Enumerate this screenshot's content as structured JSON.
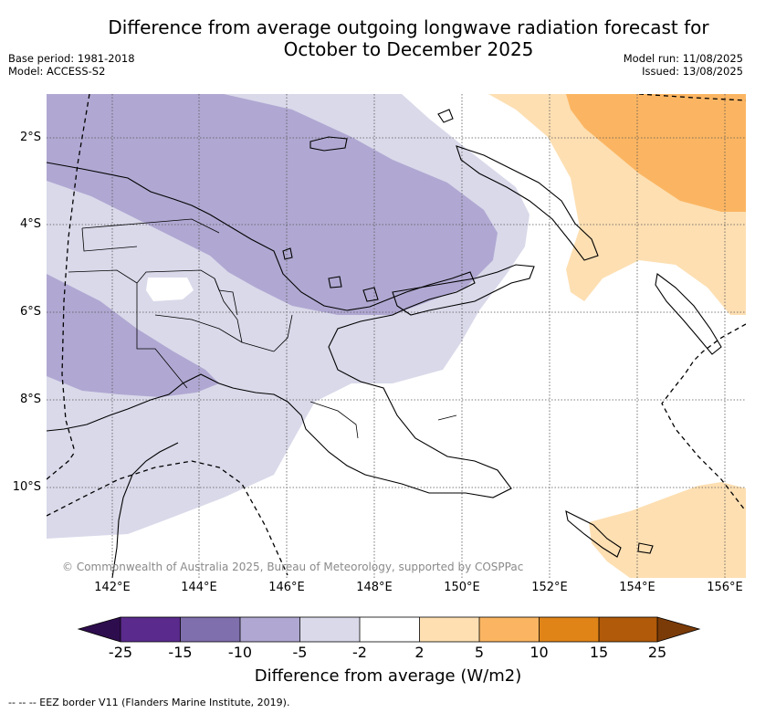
{
  "title_line1": "Difference from average outgoing longwave radiation forecast for",
  "title_line2": "October to December 2025",
  "meta_left": {
    "line1": "Base period: 1981-2018",
    "line2": "Model: ACCESS-S2"
  },
  "meta_right": {
    "line1": "Model run: 11/08/2025",
    "line2": "Issued: 13/08/2025"
  },
  "x_ticks": [
    "142°E",
    "144°E",
    "146°E",
    "148°E",
    "150°E",
    "152°E",
    "154°E",
    "156°E"
  ],
  "y_ticks": [
    "2°S",
    "4°S",
    "6°S",
    "8°S",
    "10°S"
  ],
  "copyright": "© Commonwealth of Australia 2025, Bureau of Meteorology, supported by COSPPac",
  "colorbar": {
    "labels": [
      "-25",
      "-15",
      "-10",
      "-5",
      "-2",
      "2",
      "5",
      "10",
      "15",
      "25"
    ],
    "colors": [
      "#2e0d4e",
      "#5a2a8c",
      "#7f6fac",
      "#b0a8d2",
      "#d9d9ea",
      "#ffffff",
      "#fddfb2",
      "#fbb562",
      "#e08418",
      "#b05a0a",
      "#7a3b08"
    ],
    "title": "Difference from average (W/m2)"
  },
  "footnote": "-- -- -- EEZ border V11 (Flanders Marine Institute, 2019).",
  "map_colors": {
    "lav_light": "#d9d9ea",
    "lav_mid": "#b0a8d2",
    "orange_light": "#fddfb2",
    "orange_mid": "#fbb562"
  }
}
